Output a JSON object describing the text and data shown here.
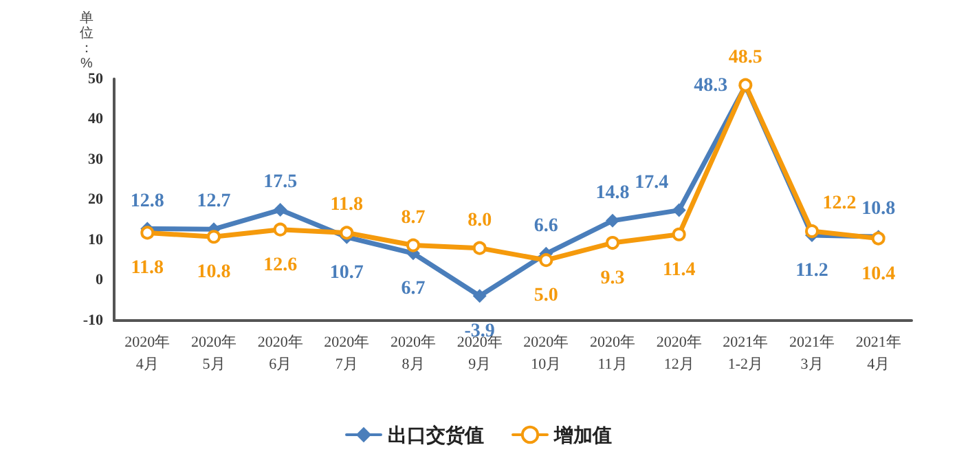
{
  "chart_data": {
    "type": "line",
    "ylabel": "单位：%",
    "categories": [
      "2020年\n4月",
      "2020年\n5月",
      "2020年\n6月",
      "2020年\n7月",
      "2020年\n8月",
      "2020年\n9月",
      "2020年\n10月",
      "2020年\n11月",
      "2020年\n12月",
      "2021年\n1-2月",
      "2021年\n3月",
      "2021年\n4月"
    ],
    "series": [
      {
        "name": "出口交货值",
        "color": "#4a7ebb",
        "marker": "diamond",
        "values": [
          12.8,
          12.7,
          17.5,
          10.7,
          6.7,
          -3.9,
          6.6,
          14.8,
          17.4,
          48.3,
          11.2,
          10.8
        ],
        "value_labels": [
          "12.8",
          "12.7",
          "17.5",
          "10.7",
          "6.7",
          "-3.9",
          "6.6",
          "14.8",
          "17.4",
          "48.3",
          "11.2",
          "10.8"
        ]
      },
      {
        "name": "增加值",
        "color": "#f59a0c",
        "marker": "circle",
        "values": [
          11.8,
          10.8,
          12.6,
          11.8,
          8.7,
          8.0,
          5.0,
          9.3,
          11.4,
          48.5,
          12.2,
          10.4
        ],
        "value_labels": [
          "11.8",
          "10.8",
          "12.6",
          "11.8",
          "8.7",
          "8.0",
          "5.0",
          "9.3",
          "11.4",
          "48.5",
          "12.2",
          "10.4"
        ]
      }
    ],
    "ylim": [
      -10,
      50
    ],
    "yticks": [
      -10,
      0,
      10,
      20,
      30,
      40,
      50
    ],
    "grid": false,
    "legend": "bottom",
    "data_labels": true,
    "line_style": "solid"
  }
}
